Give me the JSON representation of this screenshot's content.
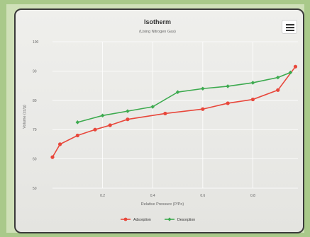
{
  "chart_data": {
    "type": "line",
    "title": "Isotherm",
    "subtitle": "(Using Nitrogen Gas)",
    "xlabel": "Relative Pressure (P/Po)",
    "ylabel": "Volume (cc/g)",
    "xlim": [
      0,
      0.98
    ],
    "ylim": [
      50,
      100
    ],
    "xticks": [
      0.2,
      0.4,
      0.6,
      0.8
    ],
    "xtick_labels": [
      "0.2",
      "0.4",
      "0.6",
      "0.8"
    ],
    "yticks": [
      50,
      60,
      70,
      80,
      90,
      100
    ],
    "ytick_labels": [
      "50",
      "60",
      "70",
      "80",
      "90",
      "100"
    ],
    "grid": true,
    "legend_position": "bottom",
    "series": [
      {
        "name": "Adsorption",
        "color": "#e8473b",
        "x": [
          0,
          0.03,
          0.1,
          0.17,
          0.23,
          0.3,
          0.45,
          0.6,
          0.7,
          0.8,
          0.9,
          0.97
        ],
        "y": [
          60.6,
          65,
          68,
          70,
          71.5,
          73.5,
          75.5,
          77,
          79,
          80.3,
          83.5,
          91.5
        ]
      },
      {
        "name": "Desorption",
        "color": "#3daa4f",
        "x": [
          0.1,
          0.2,
          0.3,
          0.4,
          0.5,
          0.6,
          0.7,
          0.8,
          0.9,
          0.95
        ],
        "y": [
          72.5,
          74.8,
          76.3,
          77.8,
          82.8,
          84,
          84.8,
          86,
          87.8,
          89.5
        ]
      }
    ]
  },
  "menu_icon": "hamburger-menu-icon"
}
